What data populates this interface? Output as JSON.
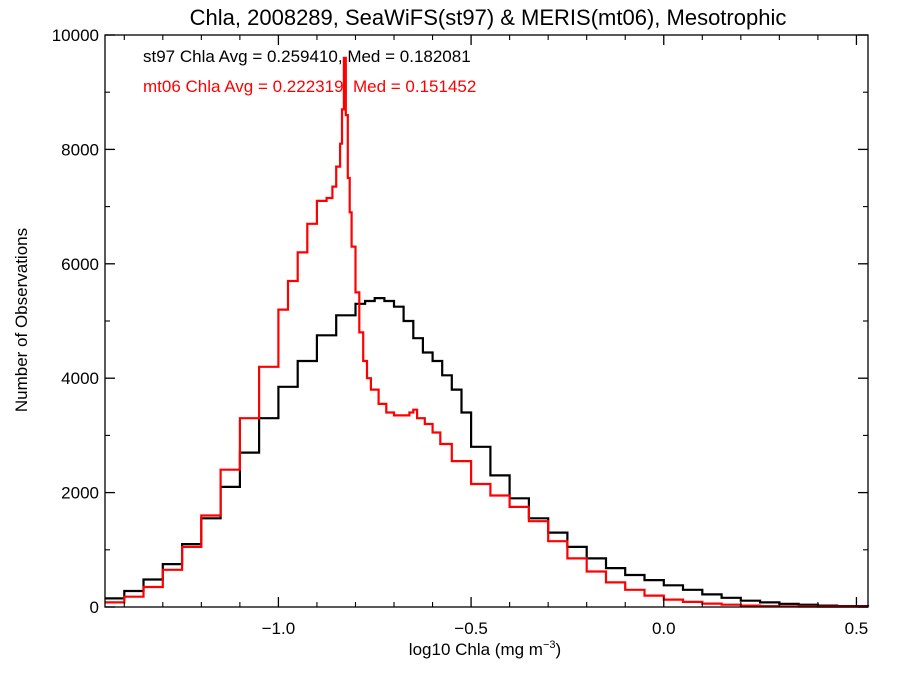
{
  "chart_data": {
    "type": "line",
    "title": "Chla, 2008289, SeaWiFS(st97) & MERIS(mt06), Mesotrophic",
    "xlabel_main": "log10 Chla (mg m",
    "xlabel_sup": "−3",
    "xlabel_close": ")",
    "ylabel": "Number of Observations",
    "xlim": [
      -1.45,
      0.53
    ],
    "ylim": [
      0,
      10000
    ],
    "x_ticks": [
      -1.0,
      -0.5,
      0.0,
      0.5
    ],
    "x_tick_labels": [
      "−1.0",
      "−0.5",
      "0.0",
      "0.5"
    ],
    "y_ticks": [
      0,
      2000,
      4000,
      6000,
      8000,
      10000
    ],
    "y_tick_labels": [
      "0",
      "2000",
      "4000",
      "6000",
      "8000",
      "10000"
    ],
    "grid": false,
    "annotations": [
      {
        "text": "st97 Chla Avg = 0.259410, Med = 0.182081",
        "color": "#000000"
      },
      {
        "text": "mt06 Chla Avg = 0.222319, Med = 0.151452",
        "color": "#ff0000"
      }
    ],
    "series": [
      {
        "color": "#000000",
        "x": [
          -1.45,
          -1.4,
          -1.35,
          -1.3,
          -1.25,
          -1.2,
          -1.15,
          -1.1,
          -1.05,
          -1.0,
          -0.95,
          -0.9,
          -0.85,
          -0.8,
          -0.775,
          -0.75,
          -0.725,
          -0.7,
          -0.675,
          -0.65,
          -0.625,
          -0.6,
          -0.575,
          -0.55,
          -0.525,
          -0.5,
          -0.45,
          -0.4,
          -0.35,
          -0.3,
          -0.25,
          -0.2,
          -0.15,
          -0.1,
          -0.05,
          0.0,
          0.05,
          0.1,
          0.15,
          0.2,
          0.25,
          0.3,
          0.35,
          0.4,
          0.45,
          0.53
        ],
        "y": [
          150,
          280,
          480,
          750,
          1100,
          1550,
          2100,
          2700,
          3300,
          3850,
          4300,
          4750,
          5100,
          5300,
          5350,
          5400,
          5350,
          5250,
          5000,
          4700,
          4450,
          4300,
          4050,
          3800,
          3400,
          2800,
          2300,
          1900,
          1550,
          1300,
          1050,
          850,
          680,
          560,
          470,
          380,
          300,
          220,
          160,
          110,
          80,
          55,
          40,
          25,
          15,
          10
        ]
      },
      {
        "color": "#ff0000",
        "x": [
          -1.45,
          -1.4,
          -1.35,
          -1.3,
          -1.25,
          -1.2,
          -1.15,
          -1.1,
          -1.05,
          -1.0,
          -0.975,
          -0.95,
          -0.925,
          -0.9,
          -0.875,
          -0.86,
          -0.85,
          -0.84,
          -0.835,
          -0.83,
          -0.825,
          -0.82,
          -0.815,
          -0.81,
          -0.8,
          -0.79,
          -0.78,
          -0.77,
          -0.76,
          -0.74,
          -0.72,
          -0.7,
          -0.68,
          -0.66,
          -0.65,
          -0.64,
          -0.62,
          -0.6,
          -0.58,
          -0.55,
          -0.5,
          -0.45,
          -0.4,
          -0.35,
          -0.3,
          -0.25,
          -0.2,
          -0.15,
          -0.1,
          -0.05,
          0.0,
          0.05,
          0.1,
          0.15,
          0.2,
          0.25,
          0.3,
          0.35,
          0.4,
          0.45,
          0.53
        ],
        "y": [
          80,
          180,
          350,
          650,
          1050,
          1600,
          2400,
          3300,
          4200,
          5200,
          5700,
          6200,
          6700,
          7100,
          7150,
          7350,
          7700,
          8100,
          8700,
          9600,
          8600,
          7500,
          6900,
          6300,
          5500,
          4800,
          4300,
          4000,
          3800,
          3550,
          3400,
          3350,
          3350,
          3400,
          3450,
          3300,
          3200,
          3050,
          2850,
          2550,
          2150,
          1950,
          1750,
          1500,
          1150,
          850,
          620,
          430,
          300,
          200,
          130,
          90,
          60,
          40,
          25,
          15,
          10,
          8,
          6,
          5,
          5
        ]
      }
    ]
  }
}
